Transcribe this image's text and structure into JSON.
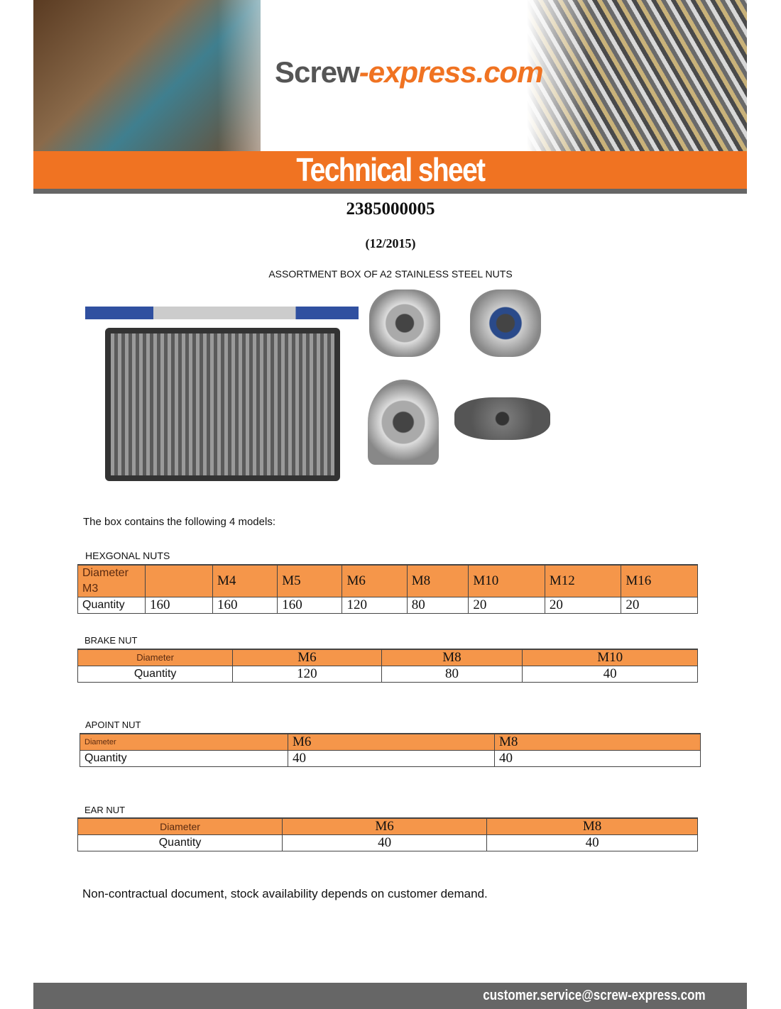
{
  "header": {
    "logo_main": "Screw",
    "logo_accent": "-express.com",
    "banner_title": "Technical sheet"
  },
  "doc": {
    "reference": "2385000005",
    "date": "(12/2015)",
    "subtitle": "ASSORTMENT BOX OF A2 STAINLESS STEEL NUTS",
    "intro": "The box contains the following 4 models:",
    "note": "Non-contractual document, stock availability depends on customer demand."
  },
  "colors": {
    "brand_orange": "#f07322",
    "table_header": "#f5964a",
    "footer_grey": "#666666"
  },
  "tables": {
    "hex": {
      "title": "HEXGONAL NUTS",
      "header": [
        "Diameter M3",
        "",
        "M4",
        "M5",
        "M6",
        "M8",
        "M10",
        "M12",
        "M16"
      ],
      "row": [
        "Quantity",
        "160",
        "160",
        "160",
        "120",
        "80",
        "20",
        "20",
        "20"
      ]
    },
    "brake": {
      "title": "BRAKE NUT",
      "header": [
        "Diameter",
        "M6",
        "M8",
        "M10"
      ],
      "row": [
        "Quantity",
        "120",
        "80",
        "40"
      ]
    },
    "apoint": {
      "title": "APOINT NUT",
      "header": [
        "Diameter",
        "M6",
        "M8"
      ],
      "row": [
        "Quantity",
        "40",
        "40"
      ]
    },
    "ear": {
      "title": "EAR NUT",
      "header": [
        "Diameter",
        "M6",
        "M8"
      ],
      "row": [
        "Quantity",
        "40",
        "40"
      ]
    }
  },
  "footer": {
    "email": "customer.service@screw-express.com"
  }
}
